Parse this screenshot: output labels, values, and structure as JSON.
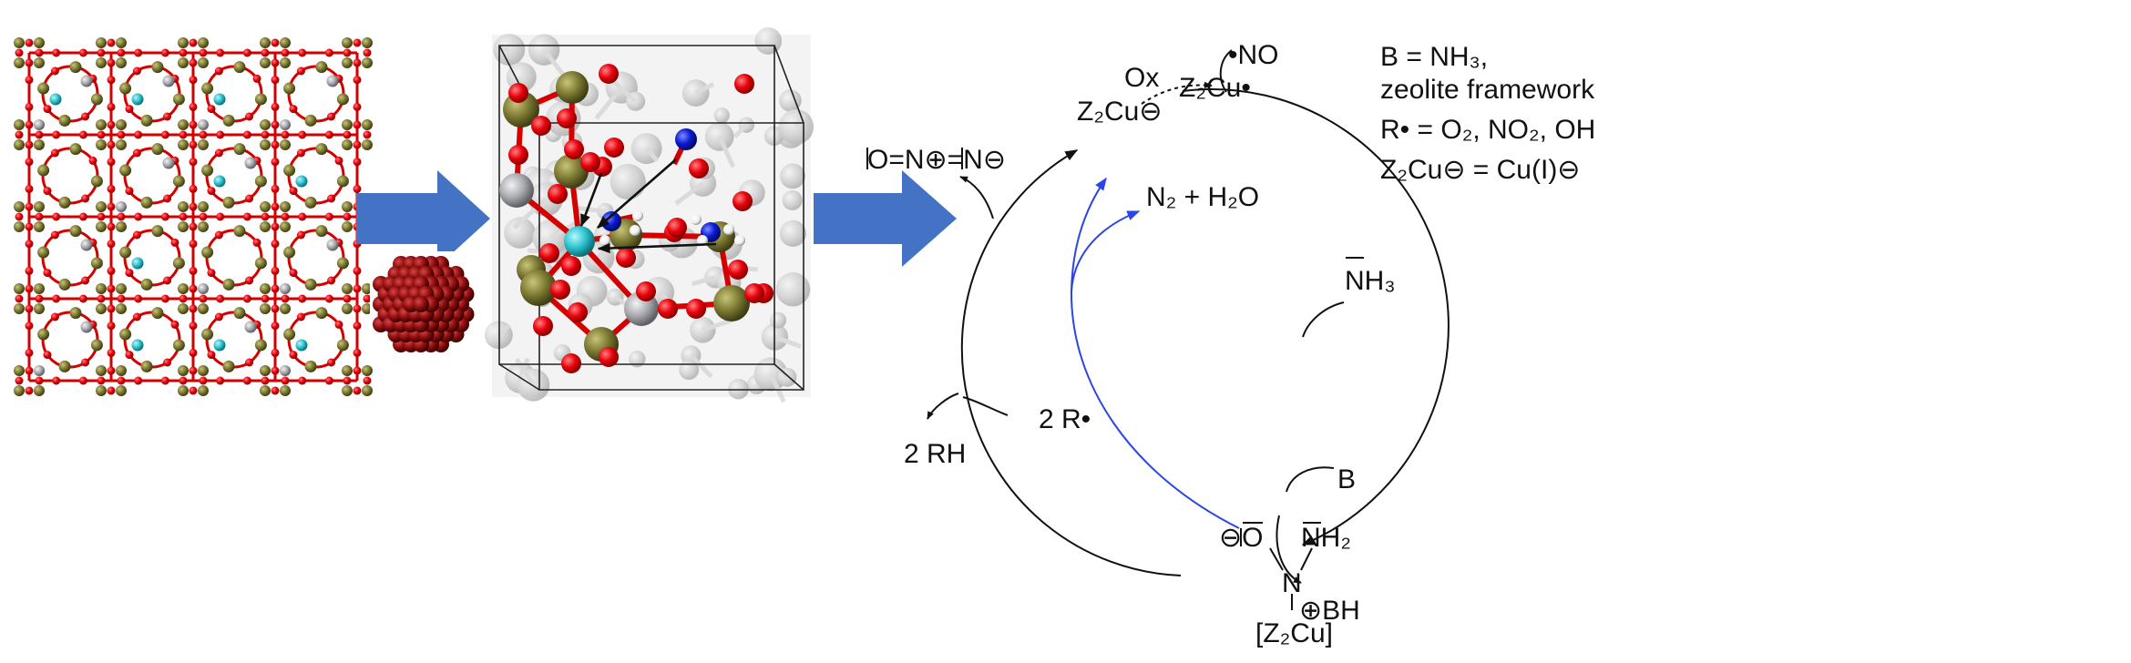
{
  "colors": {
    "oxygen": "#e8000b",
    "silicon": "#7d7a33",
    "aluminum": "#a9abb0",
    "copper": "#2bc3cf",
    "nitrogen": "#0a1bd6",
    "hydrogen": "#f2f2f2",
    "bond": "#d40000",
    "cluster": "#8f0f0f",
    "process_arrow": "#4472c4",
    "reaction_arrow": "#111111",
    "blue_path": "#2b45e6"
  },
  "icons": [
    "zeolite-framework-lattice",
    "copper-nanocluster",
    "active-site-structure",
    "process-arrow"
  ],
  "catalytic_cycle": {
    "legend": [
      "B = NH₃,",
      "zeolite framework",
      "R• = O₂, NO₂, OH",
      "Z₂Cu⊖ = Cu(I)⊖"
    ],
    "species": {
      "z2cu_anion": "Z₂Cu⊖",
      "oxidant": "Ox",
      "z2cu_radical": "Z₂Cu•",
      "no_radical": "•NO",
      "nh3": "NH₃",
      "base": "B",
      "bh_plus": "⊕BH",
      "intermediate_o": "⊖O",
      "intermediate_nh2": "NH₂",
      "intermediate_n": "N",
      "intermediate_cu": "[Z₂Cu]",
      "products": "N₂ + H₂O",
      "two_r": "2 R•",
      "two_rh": "2 RH",
      "n2o": "O=N⊕=N⊖"
    }
  }
}
